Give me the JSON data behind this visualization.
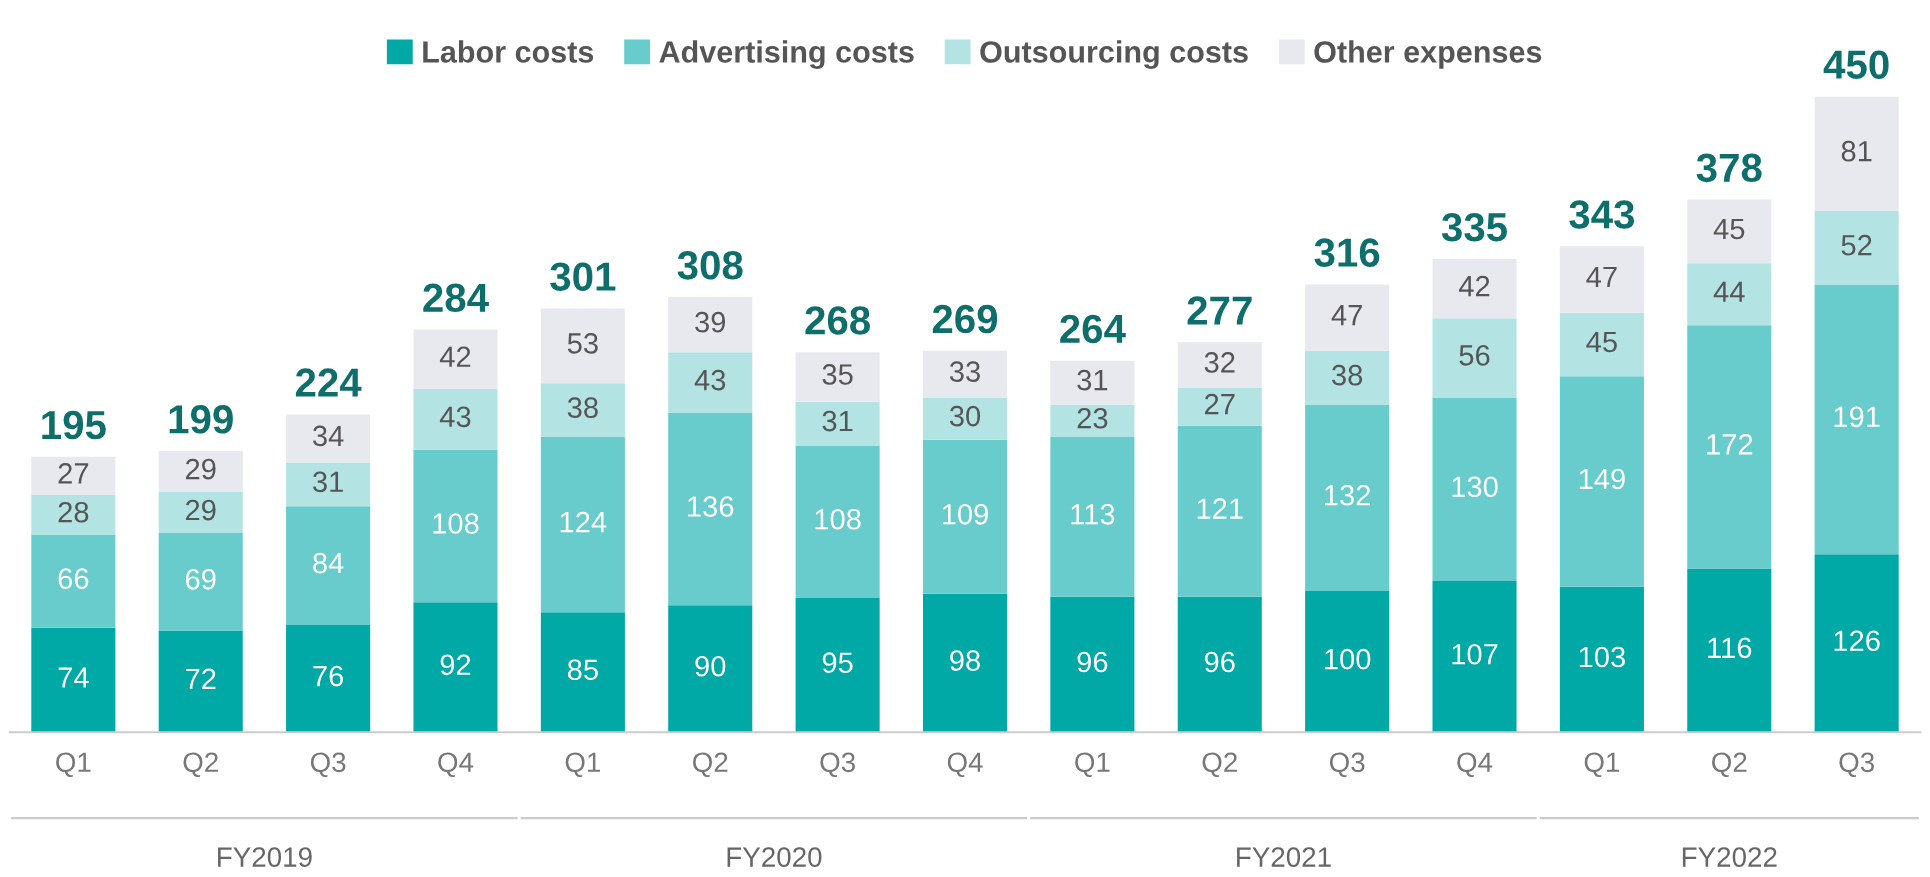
{
  "chart_data": {
    "type": "bar",
    "stacked": true,
    "data_labels": true,
    "legend": "top",
    "grid": false,
    "categories": [
      "Q1",
      "Q2",
      "Q3",
      "Q4",
      "Q1",
      "Q2",
      "Q3",
      "Q4",
      "Q1",
      "Q2",
      "Q3",
      "Q4",
      "Q1",
      "Q2",
      "Q3"
    ],
    "series": [
      {
        "name": "Labor costs",
        "color": "#00a9a5",
        "values": [
          74,
          72,
          76,
          92,
          85,
          90,
          95,
          98,
          96,
          96,
          100,
          107,
          103,
          116,
          126
        ]
      },
      {
        "name": "Advertising costs",
        "color": "#68cccc",
        "values": [
          66,
          69,
          84,
          108,
          124,
          136,
          108,
          109,
          113,
          121,
          132,
          130,
          149,
          172,
          191
        ]
      },
      {
        "name": "Outsourcing costs",
        "color": "#b3e3e3",
        "values": [
          28,
          29,
          31,
          43,
          38,
          43,
          31,
          30,
          23,
          27,
          38,
          56,
          45,
          44,
          52
        ]
      },
      {
        "name": "Other expenses",
        "color": "#e8e9ee",
        "values": [
          27,
          29,
          34,
          42,
          53,
          39,
          35,
          33,
          31,
          32,
          47,
          42,
          47,
          45,
          81
        ]
      }
    ],
    "totals": [
      "195",
      "199",
      "224",
      "284",
      "301",
      "308",
      "268",
      "269",
      "264",
      "277",
      "316",
      "335",
      "343",
      "378",
      "450"
    ],
    "annotations": [
      "FY2019",
      "FY2020",
      "FY2021",
      "FY2022"
    ]
  }
}
